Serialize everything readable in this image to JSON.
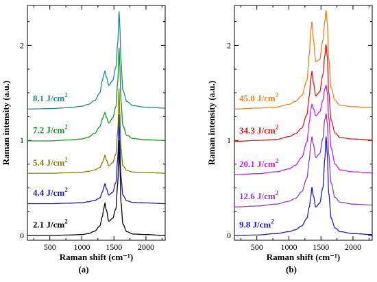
{
  "chart_data": [
    {
      "type": "line",
      "panel_label": "(a)",
      "xlabel": "Raman shift (cm⁻¹)",
      "ylabel": "Raman intensity (a.u.)",
      "xlim": [
        150,
        2300
      ],
      "ylim": [
        -0.05,
        2.42
      ],
      "xticks": [
        500,
        1000,
        1500,
        2000
      ],
      "yticks": [
        0,
        1,
        2
      ],
      "grid": false,
      "legend": "inline labels beside each curve",
      "series": [
        {
          "name": "2.1 J/cm²",
          "color": "#000000",
          "offset": 0.0,
          "x": [
            150,
            500,
            800,
            1000,
            1100,
            1200,
            1280,
            1320,
            1340,
            1360,
            1380,
            1420,
            1480,
            1530,
            1560,
            1580,
            1590,
            1610,
            1640,
            1700,
            1800,
            2000,
            2300
          ],
          "y": [
            0.0,
            0.0,
            0.005,
            0.01,
            0.02,
            0.045,
            0.1,
            0.2,
            0.28,
            0.34,
            0.27,
            0.15,
            0.18,
            0.28,
            0.55,
            1.0,
            0.78,
            0.35,
            0.12,
            0.04,
            0.015,
            0.01,
            0.0
          ]
        },
        {
          "name": "4.4 J/cm²",
          "color": "#1a1ab4",
          "offset": 0.335,
          "x": [
            150,
            500,
            800,
            1000,
            1100,
            1200,
            1280,
            1320,
            1340,
            1360,
            1380,
            1420,
            1480,
            1530,
            1560,
            1580,
            1590,
            1610,
            1640,
            1700,
            1800,
            2000,
            2300
          ],
          "y": [
            0.0,
            0.0,
            0.005,
            0.01,
            0.02,
            0.035,
            0.06,
            0.12,
            0.17,
            0.21,
            0.16,
            0.09,
            0.12,
            0.22,
            0.48,
            0.94,
            0.7,
            0.28,
            0.09,
            0.03,
            0.012,
            0.008,
            0.0
          ]
        },
        {
          "name": "5.4 J/cm²",
          "color": "#808000",
          "offset": 0.655,
          "x": [
            150,
            500,
            800,
            1000,
            1100,
            1200,
            1280,
            1320,
            1340,
            1360,
            1380,
            1420,
            1480,
            1530,
            1560,
            1580,
            1590,
            1610,
            1640,
            1700,
            1800,
            2000,
            2300
          ],
          "y": [
            0.0,
            0.0,
            0.005,
            0.01,
            0.02,
            0.035,
            0.06,
            0.11,
            0.15,
            0.19,
            0.14,
            0.08,
            0.11,
            0.2,
            0.44,
            0.89,
            0.66,
            0.26,
            0.08,
            0.03,
            0.012,
            0.008,
            0.0
          ]
        },
        {
          "name": "7.2 J/cm²",
          "color": "#13951f",
          "offset": 0.995,
          "x": [
            150,
            500,
            800,
            1000,
            1100,
            1200,
            1280,
            1320,
            1340,
            1360,
            1380,
            1420,
            1480,
            1530,
            1560,
            1580,
            1590,
            1610,
            1640,
            1700,
            1800,
            2000,
            2300
          ],
          "y": [
            0.0,
            0.0,
            0.01,
            0.02,
            0.04,
            0.08,
            0.15,
            0.23,
            0.27,
            0.3,
            0.25,
            0.19,
            0.24,
            0.36,
            0.62,
            0.98,
            0.82,
            0.42,
            0.16,
            0.06,
            0.025,
            0.012,
            0.005
          ]
        },
        {
          "name": "8.1 J/cm²",
          "color": "#1e8c8c",
          "offset": 1.33,
          "x": [
            150,
            500,
            800,
            1000,
            1100,
            1200,
            1280,
            1320,
            1340,
            1360,
            1380,
            1420,
            1480,
            1530,
            1560,
            1580,
            1590,
            1610,
            1640,
            1700,
            1800,
            2000,
            2300
          ],
          "y": [
            0.0,
            0.005,
            0.015,
            0.03,
            0.05,
            0.09,
            0.17,
            0.3,
            0.36,
            0.4,
            0.34,
            0.25,
            0.3,
            0.44,
            0.7,
            1.03,
            0.9,
            0.5,
            0.2,
            0.08,
            0.035,
            0.02,
            0.01
          ]
        }
      ]
    },
    {
      "type": "line",
      "panel_label": "(b)",
      "xlabel": "Raman shift (cm⁻¹)",
      "ylabel": "Raman intensity (a.u.)",
      "xlim": [
        150,
        2300
      ],
      "ylim": [
        -0.05,
        2.42
      ],
      "xticks": [
        500,
        1000,
        1500,
        2000
      ],
      "yticks": [
        0,
        1,
        2
      ],
      "grid": false,
      "legend": "inline labels beside each curve",
      "series": [
        {
          "name": "9.8 J/cm²",
          "color": "#1c1ccc",
          "offset": 0.0,
          "x": [
            150,
            500,
            800,
            1000,
            1100,
            1200,
            1280,
            1320,
            1340,
            1360,
            1380,
            1420,
            1480,
            1530,
            1560,
            1580,
            1600,
            1620,
            1660,
            1720,
            1800,
            2000,
            2300
          ],
          "y": [
            0.0,
            0.005,
            0.02,
            0.04,
            0.06,
            0.1,
            0.18,
            0.3,
            0.4,
            0.51,
            0.42,
            0.3,
            0.34,
            0.5,
            0.8,
            1.04,
            0.85,
            0.45,
            0.18,
            0.08,
            0.04,
            0.02,
            0.01
          ]
        },
        {
          "name": "12.6 J/cm²",
          "color": "#8c3cd2",
          "offset": 0.3,
          "x": [
            150,
            500,
            800,
            1000,
            1100,
            1200,
            1280,
            1320,
            1340,
            1360,
            1380,
            1420,
            1480,
            1530,
            1560,
            1580,
            1600,
            1620,
            1660,
            1720,
            1800,
            2000,
            2300
          ],
          "y": [
            0.0,
            0.01,
            0.03,
            0.06,
            0.09,
            0.16,
            0.3,
            0.5,
            0.66,
            0.74,
            0.66,
            0.52,
            0.56,
            0.72,
            0.92,
            0.98,
            0.88,
            0.56,
            0.25,
            0.1,
            0.05,
            0.03,
            0.02
          ]
        },
        {
          "name": "20.1 J/cm²",
          "color": "#d21ed2",
          "offset": 0.64,
          "x": [
            150,
            500,
            800,
            1000,
            1100,
            1200,
            1280,
            1320,
            1340,
            1360,
            1380,
            1420,
            1480,
            1530,
            1560,
            1580,
            1600,
            1620,
            1660,
            1720,
            1800,
            2000,
            2300
          ],
          "y": [
            0.0,
            0.01,
            0.03,
            0.06,
            0.1,
            0.18,
            0.34,
            0.55,
            0.68,
            0.74,
            0.7,
            0.62,
            0.66,
            0.78,
            0.9,
            0.94,
            0.86,
            0.6,
            0.28,
            0.11,
            0.05,
            0.03,
            0.02
          ]
        },
        {
          "name": "34.3 J/cm²",
          "color": "#e61414",
          "offset": 0.99,
          "x": [
            150,
            500,
            800,
            1000,
            1100,
            1200,
            1280,
            1320,
            1340,
            1360,
            1380,
            1420,
            1480,
            1530,
            1560,
            1580,
            1600,
            1620,
            1660,
            1720,
            1800,
            2000,
            2300
          ],
          "y": [
            0.0,
            0.01,
            0.02,
            0.05,
            0.08,
            0.14,
            0.28,
            0.48,
            0.65,
            0.74,
            0.62,
            0.48,
            0.52,
            0.7,
            0.9,
            1.02,
            0.88,
            0.52,
            0.22,
            0.09,
            0.04,
            0.025,
            0.015
          ]
        },
        {
          "name": "45.0 J/cm²",
          "color": "#f0821e",
          "offset": 1.33,
          "x": [
            150,
            500,
            800,
            1000,
            1100,
            1200,
            1280,
            1320,
            1340,
            1360,
            1380,
            1420,
            1480,
            1530,
            1560,
            1580,
            1600,
            1620,
            1660,
            1720,
            1800,
            2000,
            2300
          ],
          "y": [
            0.0,
            0.01,
            0.02,
            0.05,
            0.08,
            0.14,
            0.3,
            0.58,
            0.82,
            0.92,
            0.74,
            0.5,
            0.52,
            0.72,
            0.92,
            1.04,
            0.9,
            0.54,
            0.22,
            0.09,
            0.04,
            0.025,
            0.015
          ]
        }
      ]
    }
  ]
}
